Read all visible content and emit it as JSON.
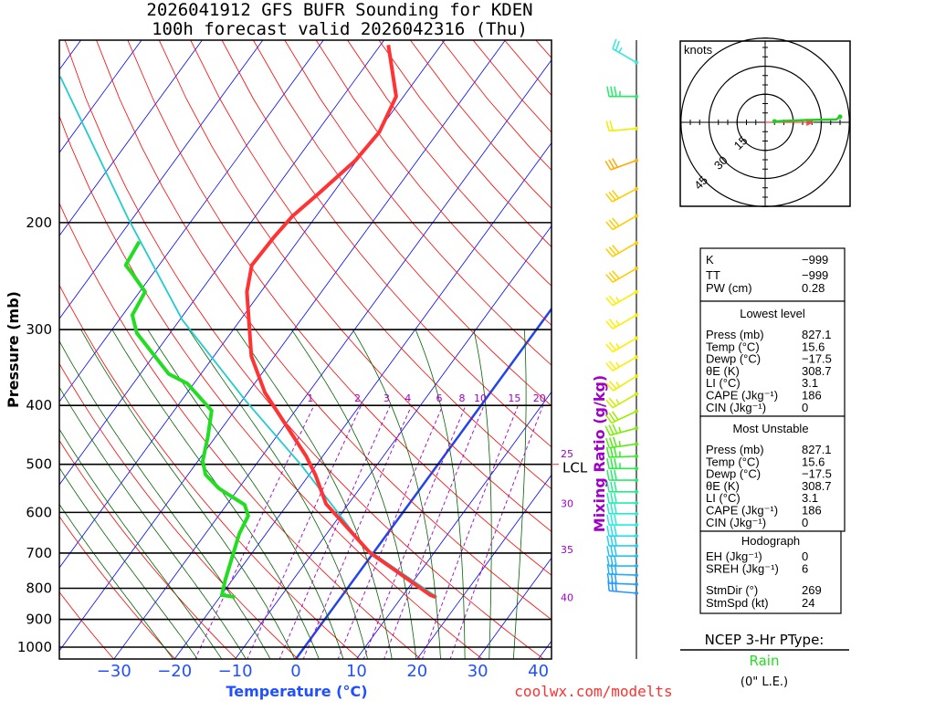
{
  "title": {
    "line1": "2026041912 GFS BUFR Sounding for KDEN",
    "line2": "100h forecast valid 2026042316 (Thu)"
  },
  "credit": "coolwx.com/modelts",
  "chart_data": {
    "type": "line",
    "subtype": "skew-T log-P",
    "title": "2026041912 GFS BUFR Sounding for KDEN - 100h forecast valid 2026042316 (Thu)",
    "xlabel": "Temperature (°C)",
    "ylabel": "Pressure (mb)",
    "y2label": "Mixing Ratio (g/kg)",
    "xlim": [
      -38,
      43
    ],
    "ylim": [
      1046,
      100
    ],
    "x_ticks": [
      -30,
      -20,
      -10,
      0,
      10,
      20,
      30,
      40
    ],
    "x_tick_labels": [
      "−30",
      "−20",
      "−10",
      "0",
      "10",
      "20",
      "30",
      "40"
    ],
    "y_ticks": [
      200,
      300,
      400,
      500,
      600,
      700,
      800,
      900,
      1000
    ],
    "y_tick_labels": [
      "200",
      "300",
      "400",
      "500",
      "600",
      "700",
      "800",
      "900",
      "1000"
    ],
    "mixing_ratio_lines": [
      1,
      2,
      3,
      4,
      6,
      8,
      10,
      15,
      20
    ],
    "mixing_ratio_labels": [
      "1",
      "2",
      "3",
      "4",
      "6",
      "8",
      "10",
      "15",
      "20"
    ],
    "right_labels": [
      {
        "text": "25",
        "p": 490
      },
      {
        "text": "30",
        "p": 592
      },
      {
        "text": "35",
        "p": 705
      },
      {
        "text": "40",
        "p": 845
      }
    ],
    "lcl": {
      "label": "LCL",
      "p": 500
    },
    "series": [
      {
        "name": "Temperature",
        "color": "#ff3333",
        "points": [
          [
            827,
            15.6
          ],
          [
            821,
            14.5
          ],
          [
            698,
            -0.7
          ],
          [
            581,
            -13.7
          ],
          [
            520,
            -19.0
          ],
          [
            485,
            -22.7
          ],
          [
            381,
            -37.2
          ],
          [
            332,
            -43.8
          ],
          [
            260,
            -52.3
          ],
          [
            235,
            -54.7
          ],
          [
            211,
            -54.4
          ],
          [
            195,
            -53.9
          ],
          [
            179,
            -52.3
          ],
          [
            158,
            -50.2
          ],
          [
            142,
            -49.7
          ],
          [
            124,
            -51.2
          ],
          [
            102,
            -58.7
          ]
        ]
      },
      {
        "name": "Dewpoint",
        "color": "#22dd22",
        "points": [
          [
            827,
            -17.5
          ],
          [
            821,
            -19.9
          ],
          [
            774,
            -21.2
          ],
          [
            651,
            -24.4
          ],
          [
            608,
            -25.1
          ],
          [
            583,
            -27.0
          ],
          [
            548,
            -33.2
          ],
          [
            520,
            -37.1
          ],
          [
            494,
            -39.2
          ],
          [
            450,
            -41.3
          ],
          [
            408,
            -43.8
          ],
          [
            368,
            -51.1
          ],
          [
            355,
            -55.3
          ],
          [
            304,
            -65.5
          ],
          [
            284,
            -68.4
          ],
          [
            260,
            -69.1
          ],
          [
            243,
            -73.3
          ],
          [
            235,
            -75.5
          ],
          [
            215,
            -76.1
          ]
        ]
      },
      {
        "name": "Parcel",
        "color": "#22cccc",
        "points": [
          [
            827,
            15.8
          ],
          [
            686,
            -2.0
          ],
          [
            502,
            -22.4
          ],
          [
            394,
            -39.2
          ],
          [
            289,
            -59.6
          ],
          [
            197,
            -80.7
          ],
          [
            115,
            -109
          ]
        ]
      }
    ],
    "wind_barbs": [
      {
        "p": 109,
        "dir": 300,
        "spd": 25,
        "color": "#33e8d8"
      },
      {
        "p": 124,
        "dir": 270,
        "spd": 35,
        "color": "#22ee66"
      },
      {
        "p": 140,
        "dir": 265,
        "spd": 20,
        "color": "#eeee00"
      },
      {
        "p": 158,
        "dir": 250,
        "spd": 30,
        "color": "#ffaa00"
      },
      {
        "p": 176,
        "dir": 242,
        "spd": 30,
        "color": "#ffcc00"
      },
      {
        "p": 195,
        "dir": 240,
        "spd": 30,
        "color": "#ffcc00"
      },
      {
        "p": 216,
        "dir": 240,
        "spd": 30,
        "color": "#ffcc00"
      },
      {
        "p": 238,
        "dir": 240,
        "spd": 30,
        "color": "#ffcc00"
      },
      {
        "p": 260,
        "dir": 240,
        "spd": 25,
        "color": "#ffee00"
      },
      {
        "p": 284,
        "dir": 240,
        "spd": 25,
        "color": "#ffee00"
      },
      {
        "p": 310,
        "dir": 240,
        "spd": 25,
        "color": "#ffee00"
      },
      {
        "p": 333,
        "dir": 240,
        "spd": 25,
        "color": "#ffee00"
      },
      {
        "p": 358,
        "dir": 238,
        "spd": 25,
        "color": "#eeee00"
      },
      {
        "p": 383,
        "dir": 240,
        "spd": 25,
        "color": "#ccee00"
      },
      {
        "p": 409,
        "dir": 245,
        "spd": 30,
        "color": "#99ee00"
      },
      {
        "p": 436,
        "dir": 255,
        "spd": 35,
        "color": "#77ee00"
      },
      {
        "p": 463,
        "dir": 262,
        "spd": 35,
        "color": "#55ee11"
      },
      {
        "p": 485,
        "dir": 268,
        "spd": 35,
        "color": "#33ee22"
      },
      {
        "p": 508,
        "dir": 270,
        "spd": 35,
        "color": "#22ee44"
      },
      {
        "p": 531,
        "dir": 270,
        "spd": 30,
        "color": "#22ee66"
      },
      {
        "p": 555,
        "dir": 270,
        "spd": 30,
        "color": "#22ee88"
      },
      {
        "p": 579,
        "dir": 270,
        "spd": 30,
        "color": "#22eeaa"
      },
      {
        "p": 603,
        "dir": 270,
        "spd": 30,
        "color": "#22eecc"
      },
      {
        "p": 629,
        "dir": 270,
        "spd": 30,
        "color": "#22eedd"
      },
      {
        "p": 656,
        "dir": 270,
        "spd": 30,
        "color": "#22e0ee"
      },
      {
        "p": 681,
        "dir": 270,
        "spd": 30,
        "color": "#22d0f0"
      },
      {
        "p": 708,
        "dir": 270,
        "spd": 30,
        "color": "#22c4f4"
      },
      {
        "p": 735,
        "dir": 270,
        "spd": 30,
        "color": "#22b8f8"
      },
      {
        "p": 761,
        "dir": 272,
        "spd": 30,
        "color": "#22acfa"
      },
      {
        "p": 788,
        "dir": 272,
        "spd": 30,
        "color": "#22a0ff"
      },
      {
        "p": 815,
        "dir": 275,
        "spd": 30,
        "color": "#2296ff"
      }
    ]
  },
  "hodograph": {
    "units_label": "knots",
    "ring_labels": [
      "15",
      "30",
      "45"
    ],
    "ring_values": [
      15,
      30,
      45
    ],
    "trace_uv": [
      [
        5,
        0.5
      ],
      [
        12,
        0.8
      ],
      [
        22,
        1.2
      ],
      [
        38,
        1.5
      ],
      [
        40,
        3
      ]
    ],
    "trace_color": "#22cc22",
    "storm_motion_uv": [
      24,
      0
    ],
    "storm_color": "#ff4444"
  },
  "stats": {
    "indices": [
      {
        "label": "K",
        "value": "−999"
      },
      {
        "label": "TT",
        "value": "−999"
      },
      {
        "label": "PW (cm)",
        "value": "0.28"
      }
    ],
    "lowest_level": {
      "heading": "Lowest level",
      "rows": [
        {
          "label": "Press (mb)",
          "value": "827.1"
        },
        {
          "label": "Temp (°C)",
          "value": "15.6"
        },
        {
          "label": "Dewp (°C)",
          "value": "−17.5"
        },
        {
          "label": "θE (K)",
          "value": "308.7"
        },
        {
          "label": "LI (°C)",
          "value": "3.1"
        },
        {
          "label": "CAPE (Jkg⁻¹)",
          "value": "186"
        },
        {
          "label": "CIN (Jkg⁻¹)",
          "value": "0"
        }
      ]
    },
    "most_unstable": {
      "heading": "Most Unstable",
      "rows": [
        {
          "label": "Press (mb)",
          "value": "827.1"
        },
        {
          "label": "Temp (°C)",
          "value": "15.6"
        },
        {
          "label": "Dewp (°C)",
          "value": "−17.5"
        },
        {
          "label": "θE (K)",
          "value": "308.7"
        },
        {
          "label": "LI (°C)",
          "value": "3.1"
        },
        {
          "label": "CAPE (Jkg⁻¹)",
          "value": "186"
        },
        {
          "label": "CIN (Jkg⁻¹)",
          "value": "0"
        }
      ]
    },
    "hodograph": {
      "heading": "Hodograph",
      "rows": [
        {
          "label": "EH (Jkg⁻¹)",
          "value": "0"
        },
        {
          "label": "SREH (Jkg⁻¹)",
          "value": "6"
        },
        {
          "label": "StmDir (°)",
          "value": "269"
        },
        {
          "label": "StmSpd (kt)",
          "value": "24"
        }
      ]
    }
  },
  "ptype": {
    "heading": "NCEP 3-Hr PType:",
    "value": "Rain",
    "value_color": "#22dd22",
    "liquid_equiv": "(0\" L.E.)"
  },
  "colors": {
    "isotherm": "#0000ff",
    "dry_adiabat": "#ff0000",
    "moist_adiabat": "#006400",
    "mixing_ratio": "#a000c8",
    "zero_isotherm": "#2244ee"
  }
}
